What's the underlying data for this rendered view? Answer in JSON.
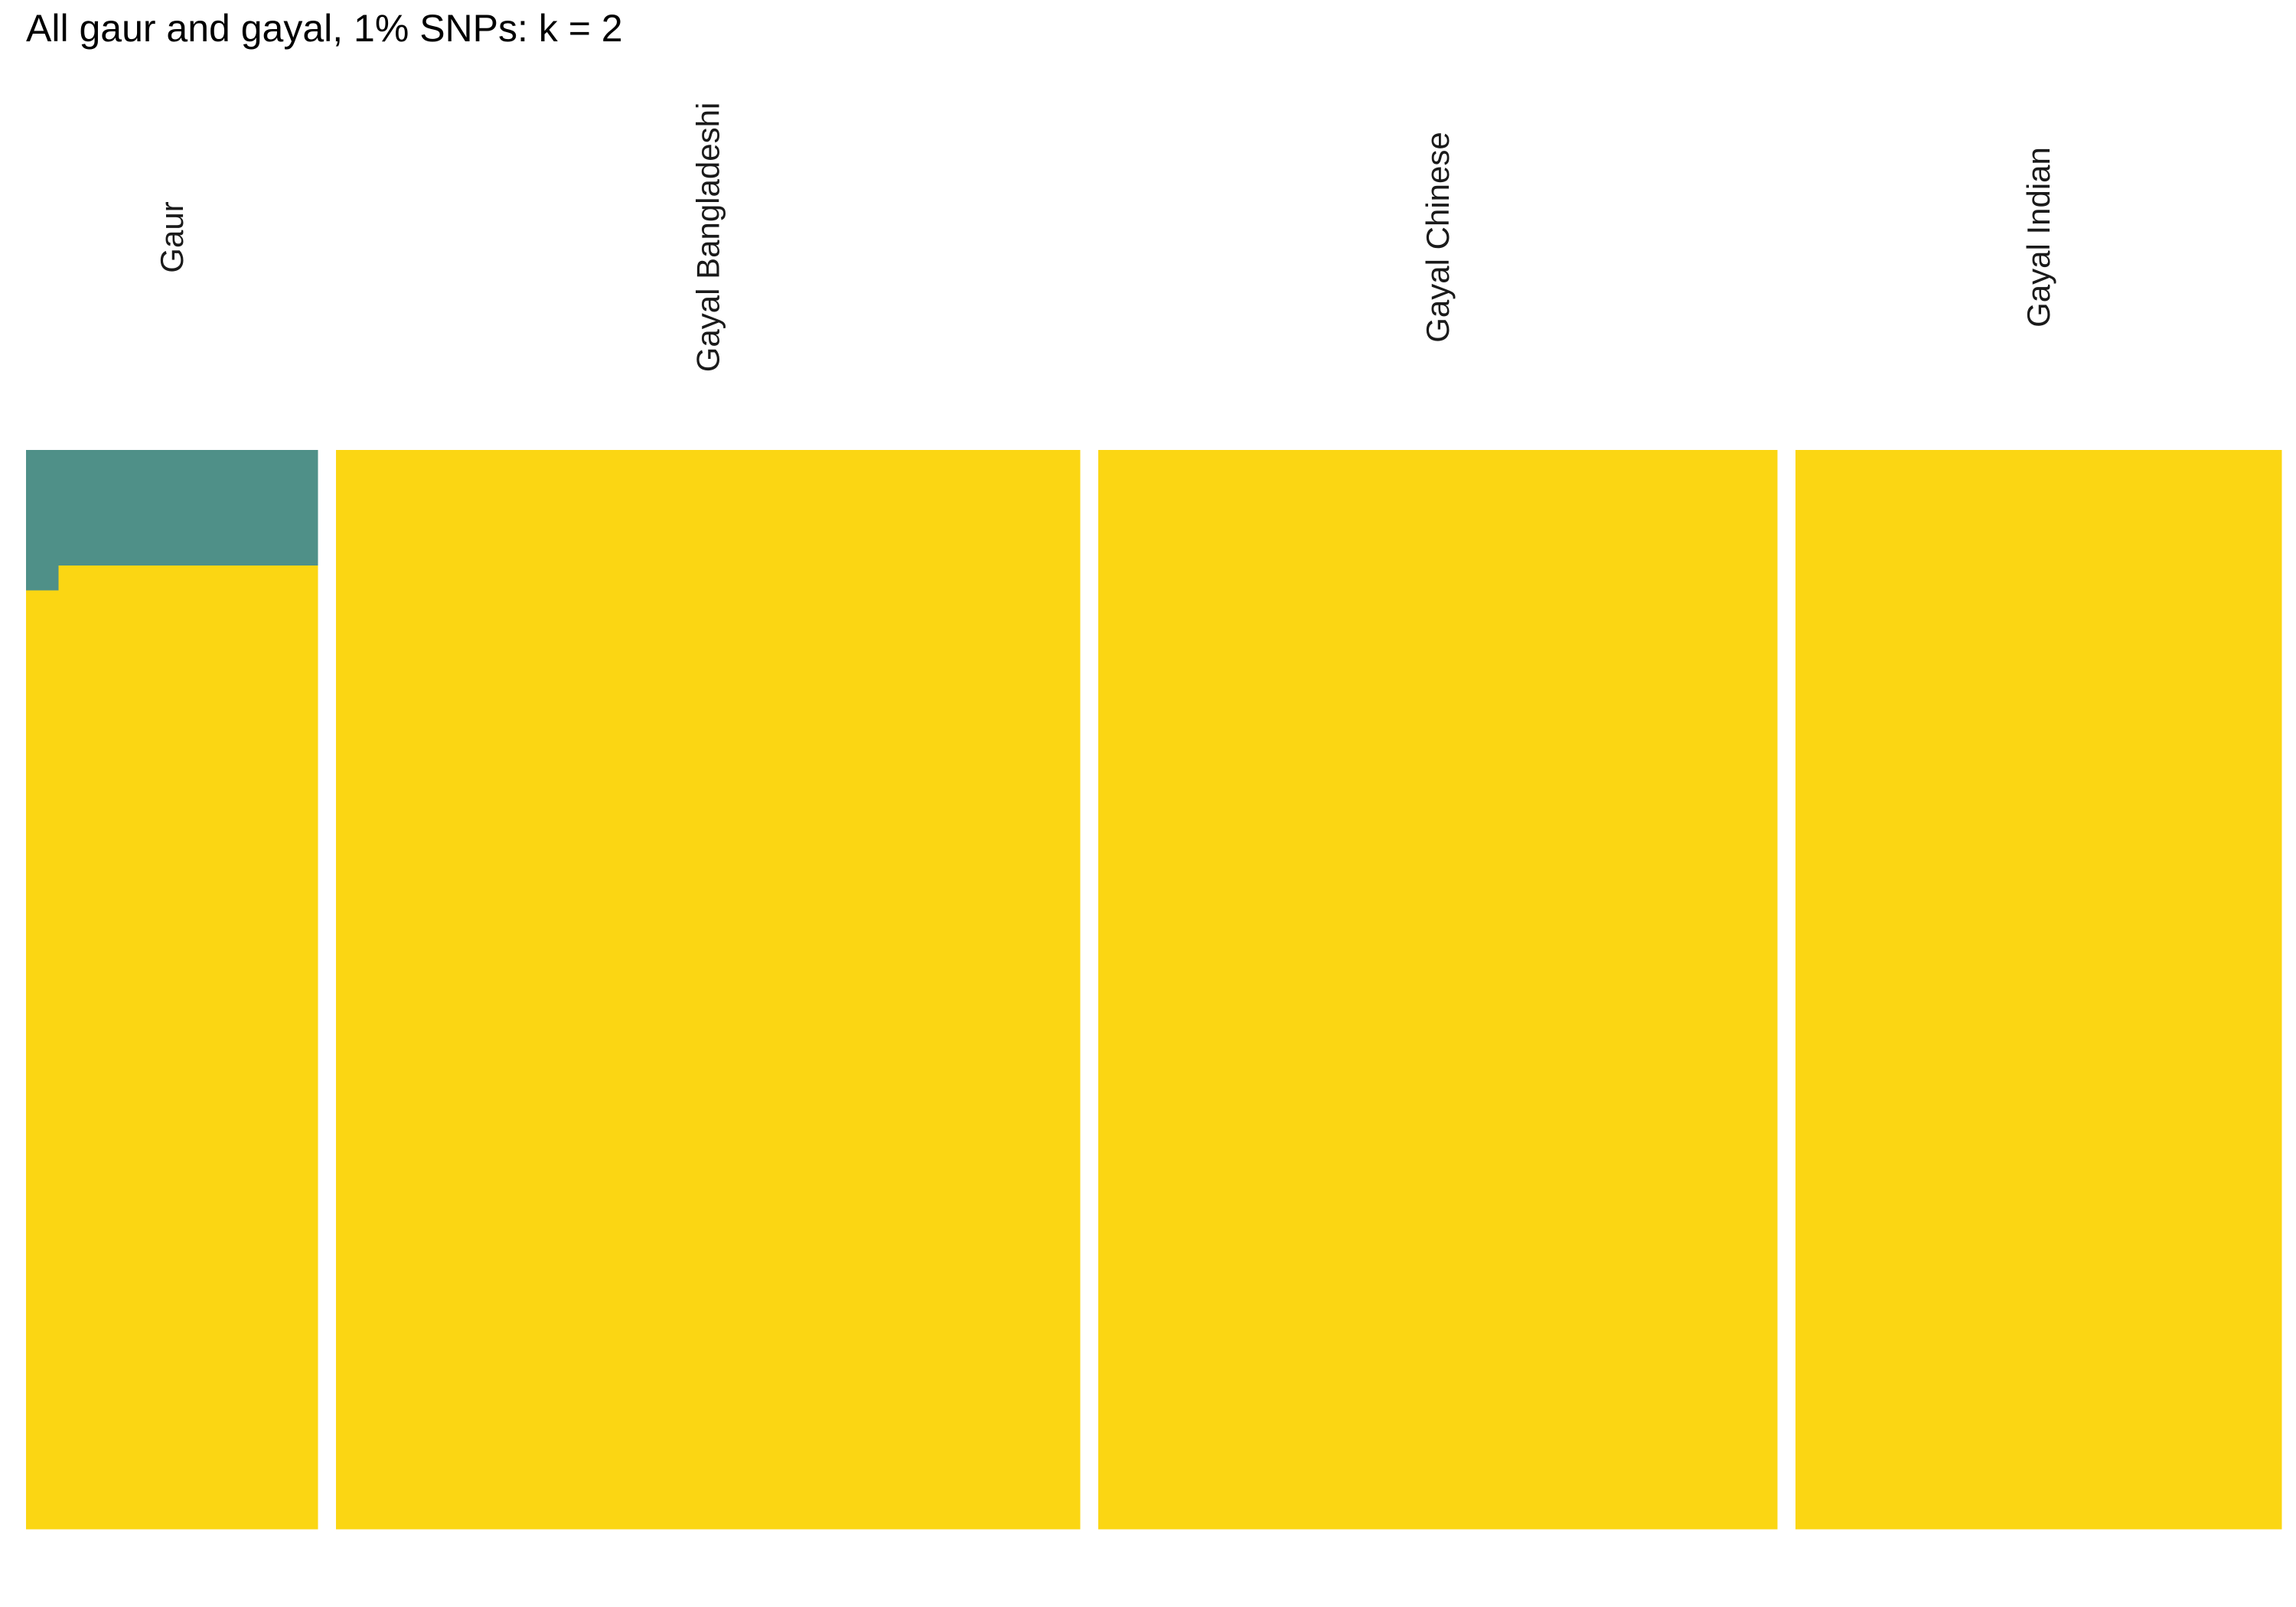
{
  "chart_data": {
    "type": "bar",
    "title": "All gaur and gayal, 1% SNPs: k = 2",
    "stacked": true,
    "orientation": "vertical",
    "ylim": [
      0,
      1
    ],
    "grid": false,
    "legend": "none",
    "cluster_colors": [
      "#4F9088",
      "#FBD613"
    ],
    "panels": [
      {
        "label": "Gaur",
        "individuals": [
          {
            "cluster_1": 0.13,
            "cluster_2": 0.87
          },
          {
            "cluster_1": 0.107,
            "cluster_2": 0.893
          },
          {
            "cluster_1": 0.107,
            "cluster_2": 0.893
          },
          {
            "cluster_1": 0.107,
            "cluster_2": 0.893
          },
          {
            "cluster_1": 0.107,
            "cluster_2": 0.893
          },
          {
            "cluster_1": 0.107,
            "cluster_2": 0.893
          },
          {
            "cluster_1": 0.107,
            "cluster_2": 0.893
          },
          {
            "cluster_1": 0.107,
            "cluster_2": 0.893
          },
          {
            "cluster_1": 0.107,
            "cluster_2": 0.893
          }
        ]
      },
      {
        "label": "Gayal Bangladeshi",
        "individuals": [
          {
            "cluster_1": 0,
            "cluster_2": 1
          },
          {
            "cluster_1": 0,
            "cluster_2": 1
          },
          {
            "cluster_1": 0,
            "cluster_2": 1
          },
          {
            "cluster_1": 0,
            "cluster_2": 1
          },
          {
            "cluster_1": 0,
            "cluster_2": 1
          },
          {
            "cluster_1": 0,
            "cluster_2": 1
          },
          {
            "cluster_1": 0,
            "cluster_2": 1
          },
          {
            "cluster_1": 0,
            "cluster_2": 1
          },
          {
            "cluster_1": 0,
            "cluster_2": 1
          },
          {
            "cluster_1": 0,
            "cluster_2": 1
          },
          {
            "cluster_1": 0,
            "cluster_2": 1
          },
          {
            "cluster_1": 0,
            "cluster_2": 1
          },
          {
            "cluster_1": 0,
            "cluster_2": 1
          },
          {
            "cluster_1": 0,
            "cluster_2": 1
          },
          {
            "cluster_1": 0,
            "cluster_2": 1
          },
          {
            "cluster_1": 0,
            "cluster_2": 1
          },
          {
            "cluster_1": 0,
            "cluster_2": 1
          },
          {
            "cluster_1": 0,
            "cluster_2": 1
          },
          {
            "cluster_1": 0,
            "cluster_2": 1
          },
          {
            "cluster_1": 0,
            "cluster_2": 1
          },
          {
            "cluster_1": 0,
            "cluster_2": 1
          },
          {
            "cluster_1": 0,
            "cluster_2": 1
          },
          {
            "cluster_1": 0,
            "cluster_2": 1
          }
        ]
      },
      {
        "label": "Gayal Chinese",
        "individuals": [
          {
            "cluster_1": 0,
            "cluster_2": 1
          },
          {
            "cluster_1": 0,
            "cluster_2": 1
          },
          {
            "cluster_1": 0,
            "cluster_2": 1
          },
          {
            "cluster_1": 0,
            "cluster_2": 1
          },
          {
            "cluster_1": 0,
            "cluster_2": 1
          },
          {
            "cluster_1": 0,
            "cluster_2": 1
          },
          {
            "cluster_1": 0,
            "cluster_2": 1
          },
          {
            "cluster_1": 0,
            "cluster_2": 1
          },
          {
            "cluster_1": 0,
            "cluster_2": 1
          },
          {
            "cluster_1": 0,
            "cluster_2": 1
          },
          {
            "cluster_1": 0,
            "cluster_2": 1
          },
          {
            "cluster_1": 0,
            "cluster_2": 1
          },
          {
            "cluster_1": 0,
            "cluster_2": 1
          },
          {
            "cluster_1": 0,
            "cluster_2": 1
          },
          {
            "cluster_1": 0,
            "cluster_2": 1
          },
          {
            "cluster_1": 0,
            "cluster_2": 1
          },
          {
            "cluster_1": 0,
            "cluster_2": 1
          },
          {
            "cluster_1": 0,
            "cluster_2": 1
          },
          {
            "cluster_1": 0,
            "cluster_2": 1
          },
          {
            "cluster_1": 0,
            "cluster_2": 1
          },
          {
            "cluster_1": 0,
            "cluster_2": 1
          }
        ]
      },
      {
        "label": "Gayal Indian",
        "individuals": [
          {
            "cluster_1": 0,
            "cluster_2": 1
          },
          {
            "cluster_1": 0,
            "cluster_2": 1
          },
          {
            "cluster_1": 0,
            "cluster_2": 1
          },
          {
            "cluster_1": 0,
            "cluster_2": 1
          },
          {
            "cluster_1": 0,
            "cluster_2": 1
          },
          {
            "cluster_1": 0,
            "cluster_2": 1
          },
          {
            "cluster_1": 0,
            "cluster_2": 1
          },
          {
            "cluster_1": 0,
            "cluster_2": 1
          },
          {
            "cluster_1": 0,
            "cluster_2": 1
          },
          {
            "cluster_1": 0,
            "cluster_2": 1
          },
          {
            "cluster_1": 0,
            "cluster_2": 1
          },
          {
            "cluster_1": 0,
            "cluster_2": 1
          },
          {
            "cluster_1": 0,
            "cluster_2": 1
          },
          {
            "cluster_1": 0,
            "cluster_2": 1
          },
          {
            "cluster_1": 0,
            "cluster_2": 1
          }
        ]
      }
    ]
  }
}
